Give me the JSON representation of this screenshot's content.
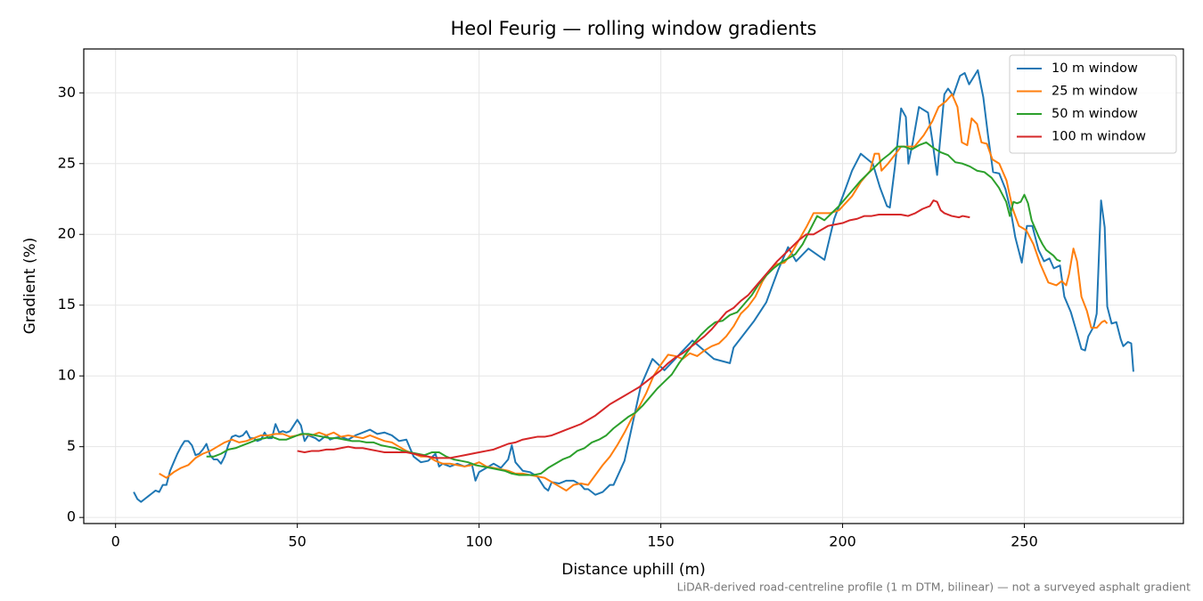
{
  "chart_data": {
    "type": "line",
    "title": "Heol Feurig — rolling window gradients",
    "x_label": "Distance uphill (m)",
    "y_label": "Gradient (%)",
    "footnote": "LiDAR-derived road-centreline profile (1 m DTM, bilinear) — not a surveyed asphalt gradient",
    "xlim": [
      -8.75,
      293.75
    ],
    "ylim": [
      -0.43,
      33.1
    ],
    "xticks": [
      0,
      50,
      100,
      150,
      200,
      250
    ],
    "yticks": [
      0,
      5,
      10,
      15,
      20,
      25,
      30
    ],
    "grid": true,
    "legend": "upper right",
    "series": [
      {
        "name": "10 m window",
        "color": "#1f77b4",
        "x": [
          5,
          6,
          7,
          8,
          9,
          10,
          11,
          12,
          13,
          14,
          15,
          16,
          17,
          18,
          19,
          20,
          21,
          22,
          23,
          24,
          25,
          26,
          27,
          28,
          29,
          30,
          31,
          32,
          33,
          34,
          35,
          36,
          37,
          38,
          39,
          40,
          41,
          42,
          43,
          44,
          45,
          46,
          47,
          48,
          49,
          50,
          51,
          52,
          53,
          54,
          55,
          56,
          57,
          58,
          59,
          60,
          62,
          64,
          66,
          68,
          70,
          72,
          74,
          76,
          78,
          80,
          82,
          84,
          86,
          88,
          89,
          90,
          92,
          94,
          96,
          98,
          99,
          100,
          102,
          104,
          106,
          108,
          109,
          110,
          112,
          114,
          116,
          118,
          119,
          120,
          122,
          124,
          126,
          128,
          129,
          130,
          132,
          134,
          136,
          137,
          140,
          144.5,
          147.7,
          151,
          158.7,
          164.6,
          169,
          170,
          175.7,
          179,
          182.3,
          185,
          187.2,
          190.6,
          195,
          197.7,
          200.2,
          202.6,
          205,
          208.3,
          210.3,
          212.2,
          213,
          214.4,
          216.1,
          217.4,
          218.1,
          219.3,
          221,
          223.5,
          224.7,
          226,
          226.7,
          228,
          229,
          230.4,
          232.3,
          233.6,
          234.8,
          237.2,
          238.7,
          240,
          241.4,
          243.1,
          244.8,
          246.3,
          247.5,
          249.3,
          250.7,
          252.2,
          253.9,
          255.4,
          256.9,
          258.1,
          259.8,
          261,
          262.8,
          264.5,
          265.7,
          266.7,
          267.6,
          269.1,
          269.9,
          271.1,
          272.1,
          272.8,
          274,
          275.3,
          276.5,
          277.2,
          278.5,
          279.4,
          280
        ],
        "values": [
          1.8,
          1.3,
          1.1,
          1.3,
          1.5,
          1.7,
          1.9,
          1.8,
          2.3,
          2.3,
          3.3,
          3.9,
          4.5,
          5.0,
          5.4,
          5.4,
          5.1,
          4.4,
          4.5,
          4.8,
          5.2,
          4.4,
          4.1,
          4.1,
          3.8,
          4.3,
          5.1,
          5.7,
          5.8,
          5.7,
          5.8,
          6.1,
          5.6,
          5.6,
          5.4,
          5.5,
          6.0,
          5.6,
          5.6,
          6.6,
          6.0,
          6.1,
          6.0,
          6.1,
          6.5,
          6.9,
          6.5,
          5.4,
          5.8,
          5.7,
          5.6,
          5.4,
          5.6,
          5.8,
          5.5,
          5.6,
          5.7,
          5.5,
          5.8,
          6.0,
          6.2,
          5.9,
          6.0,
          5.8,
          5.4,
          5.5,
          4.3,
          3.9,
          4.0,
          4.5,
          3.6,
          3.8,
          3.6,
          3.8,
          3.6,
          3.8,
          2.6,
          3.2,
          3.5,
          3.8,
          3.5,
          4.1,
          5.1,
          3.9,
          3.3,
          3.2,
          2.9,
          2.1,
          1.9,
          2.5,
          2.4,
          2.6,
          2.6,
          2.3,
          2.0,
          2.0,
          1.6,
          1.8,
          2.3,
          2.3,
          4.0,
          9.3,
          11.2,
          10.4,
          12.5,
          11.2,
          10.9,
          12.0,
          13.9,
          15.2,
          17.5,
          19.1,
          18.1,
          19.0,
          18.2,
          21.1,
          22.8,
          24.5,
          25.7,
          25.0,
          23.3,
          22.0,
          21.9,
          24.8,
          28.9,
          28.3,
          25.0,
          26.5,
          29.0,
          28.6,
          26.6,
          24.2,
          26.3,
          29.9,
          30.3,
          29.8,
          31.2,
          31.4,
          30.6,
          31.6,
          29.7,
          27.0,
          24.4,
          24.3,
          23.2,
          21.6,
          19.8,
          18.0,
          20.6,
          20.6,
          18.9,
          18.1,
          18.3,
          17.6,
          17.8,
          15.6,
          14.5,
          13.0,
          11.9,
          11.8,
          12.8,
          13.5,
          14.4,
          22.4,
          20.5,
          14.9,
          13.7,
          13.8,
          12.6,
          12.1,
          12.4,
          12.3,
          10.3
        ]
      },
      {
        "name": "25 m window",
        "color": "#ff7f0e",
        "x": [
          12,
          14,
          16,
          18,
          20,
          22,
          24,
          26,
          28,
          30,
          32,
          34,
          36,
          38,
          40,
          42,
          44,
          46,
          48,
          50,
          52,
          54,
          56,
          58,
          60,
          62,
          64,
          66,
          68,
          70,
          72,
          74,
          76,
          78,
          80,
          82,
          84,
          86,
          88,
          90,
          92,
          94,
          96,
          98,
          100,
          102,
          104,
          106,
          108,
          110,
          112,
          114,
          116,
          118,
          120,
          122,
          124,
          126,
          128,
          130,
          132,
          134,
          136,
          138,
          140,
          142,
          144,
          146,
          148,
          150,
          152,
          154,
          156,
          158,
          160,
          162,
          164,
          166,
          168,
          170,
          172,
          174,
          176,
          178,
          180,
          182,
          184,
          186,
          188,
          190,
          192,
          194,
          196.5,
          199,
          202.6,
          205,
          207.6,
          208.8,
          210,
          210.7,
          212.5,
          216.1,
          219.8,
          222.3,
          224.7,
          226.4,
          228.4,
          230.1,
          231.6,
          232.8,
          234.3,
          235.5,
          237,
          238.2,
          239.7,
          241.2,
          243.1,
          245.1,
          246.8,
          248.5,
          250.5,
          252.5,
          254.4,
          256.6,
          258.8,
          260.3,
          261.5,
          262.3,
          263.5,
          264.5,
          265.7,
          267.2,
          268.4,
          269.9,
          271.3,
          272.1,
          272.8
        ],
        "values": [
          3.1,
          2.8,
          3.2,
          3.5,
          3.7,
          4.2,
          4.5,
          4.7,
          5.0,
          5.3,
          5.5,
          5.3,
          5.4,
          5.6,
          5.8,
          5.8,
          5.9,
          5.9,
          5.7,
          5.8,
          5.9,
          5.8,
          6.0,
          5.8,
          6.0,
          5.7,
          5.8,
          5.7,
          5.6,
          5.8,
          5.6,
          5.4,
          5.3,
          5.0,
          4.7,
          4.5,
          4.3,
          4.3,
          4.0,
          3.8,
          3.8,
          3.7,
          3.6,
          3.7,
          3.9,
          3.6,
          3.5,
          3.4,
          3.3,
          3.1,
          3.1,
          3.0,
          2.9,
          2.8,
          2.5,
          2.2,
          1.9,
          2.3,
          2.4,
          2.3,
          3.0,
          3.7,
          4.3,
          5.1,
          6.0,
          7.0,
          7.8,
          8.8,
          10.0,
          10.8,
          11.5,
          11.4,
          11.2,
          11.6,
          11.4,
          11.8,
          12.1,
          12.3,
          12.8,
          13.5,
          14.4,
          14.9,
          15.6,
          16.7,
          17.5,
          17.9,
          18.0,
          18.7,
          19.6,
          20.5,
          21.5,
          21.5,
          21.5,
          21.7,
          22.7,
          23.7,
          24.5,
          25.7,
          25.7,
          24.5,
          25.0,
          26.2,
          26.2,
          27.0,
          28.0,
          29.0,
          29.4,
          29.9,
          29.0,
          26.5,
          26.3,
          28.2,
          27.8,
          26.5,
          26.4,
          25.3,
          25.0,
          23.8,
          21.8,
          20.6,
          20.3,
          19.3,
          17.9,
          16.6,
          16.4,
          16.7,
          16.4,
          17.2,
          19.0,
          18.1,
          15.6,
          14.6,
          13.4,
          13.4,
          13.8,
          13.9,
          13.7
        ]
      },
      {
        "name": "50 m window",
        "color": "#2ca02c",
        "x": [
          25,
          27,
          29,
          31,
          33,
          35,
          37,
          39,
          41,
          43,
          45,
          47,
          49,
          51,
          53,
          55,
          57,
          59,
          61,
          63,
          65,
          67,
          69,
          71,
          73,
          75,
          77,
          79,
          81,
          83,
          85,
          87,
          89,
          91,
          93,
          95,
          97,
          99,
          101,
          103,
          105,
          107,
          109,
          111,
          113,
          115,
          117,
          119,
          121,
          123,
          125,
          127,
          129,
          131,
          133,
          135,
          137,
          139,
          141,
          143,
          145,
          147,
          149,
          151,
          153,
          155,
          157,
          159,
          161,
          163,
          165,
          167,
          169,
          171,
          173,
          175,
          177,
          179,
          181,
          183,
          185,
          187,
          189,
          191,
          193,
          195,
          197,
          199,
          201,
          203,
          205,
          207,
          209,
          211,
          213,
          215,
          217,
          219,
          221,
          223,
          225,
          227,
          229,
          231,
          233,
          235,
          237,
          239,
          241,
          243,
          245,
          246,
          247,
          248,
          249,
          250,
          251,
          252,
          253,
          254,
          255,
          256,
          257,
          258,
          259,
          260
        ],
        "values": [
          4.3,
          4.3,
          4.5,
          4.8,
          4.9,
          5.1,
          5.3,
          5.5,
          5.6,
          5.7,
          5.5,
          5.5,
          5.7,
          5.9,
          5.9,
          5.8,
          5.7,
          5.6,
          5.6,
          5.5,
          5.4,
          5.4,
          5.3,
          5.3,
          5.1,
          5.0,
          4.9,
          4.7,
          4.6,
          4.5,
          4.4,
          4.6,
          4.6,
          4.3,
          4.1,
          4.0,
          3.9,
          3.7,
          3.6,
          3.5,
          3.4,
          3.3,
          3.1,
          3.0,
          3.0,
          3.0,
          3.1,
          3.5,
          3.8,
          4.1,
          4.3,
          4.7,
          4.9,
          5.3,
          5.5,
          5.8,
          6.3,
          6.7,
          7.1,
          7.4,
          7.9,
          8.5,
          9.1,
          9.6,
          10.1,
          10.9,
          11.6,
          12.3,
          12.9,
          13.4,
          13.8,
          13.9,
          14.3,
          14.5,
          15.1,
          15.7,
          16.5,
          17.1,
          17.6,
          18.0,
          18.3,
          18.6,
          19.3,
          20.3,
          21.3,
          21.0,
          21.5,
          22.0,
          22.6,
          23.2,
          23.8,
          24.3,
          24.8,
          25.3,
          25.7,
          26.2,
          26.2,
          26.0,
          26.3,
          26.5,
          26.1,
          25.8,
          25.6,
          25.1,
          25.0,
          24.8,
          24.5,
          24.4,
          24.0,
          23.3,
          22.3,
          21.3,
          22.3,
          22.2,
          22.3,
          22.8,
          22.2,
          21.0,
          20.4,
          19.8,
          19.3,
          18.9,
          18.7,
          18.5,
          18.2,
          18.1
        ]
      },
      {
        "name": "100 m window",
        "color": "#d62728",
        "x": [
          50,
          52,
          54,
          56,
          58,
          60,
          62,
          64,
          66,
          68,
          70,
          72,
          74,
          76,
          78,
          80,
          82,
          84,
          86,
          88,
          90,
          92,
          94,
          96,
          98,
          100,
          102,
          104,
          106,
          108,
          110,
          112,
          114,
          116,
          118,
          120,
          122,
          124,
          126,
          128,
          130,
          132,
          134,
          136,
          138,
          140,
          142,
          144,
          146,
          148,
          150,
          152,
          154,
          156,
          158,
          160,
          162,
          164,
          166,
          168,
          170,
          172,
          174,
          176,
          178,
          180,
          182,
          184,
          186,
          188,
          190,
          192,
          194,
          196,
          198,
          200,
          202,
          204,
          206,
          208,
          210,
          212,
          214,
          216,
          218,
          220,
          222,
          224,
          225,
          226,
          227,
          228,
          230,
          232,
          233,
          235
        ],
        "values": [
          4.7,
          4.6,
          4.7,
          4.7,
          4.8,
          4.8,
          4.9,
          5.0,
          4.9,
          4.9,
          4.8,
          4.7,
          4.6,
          4.6,
          4.6,
          4.6,
          4.5,
          4.4,
          4.3,
          4.2,
          4.2,
          4.2,
          4.3,
          4.4,
          4.5,
          4.6,
          4.7,
          4.8,
          5.0,
          5.2,
          5.3,
          5.5,
          5.6,
          5.7,
          5.7,
          5.8,
          6.0,
          6.2,
          6.4,
          6.6,
          6.9,
          7.2,
          7.6,
          8.0,
          8.3,
          8.6,
          8.9,
          9.2,
          9.6,
          10.0,
          10.4,
          10.9,
          11.3,
          11.6,
          12.0,
          12.4,
          12.8,
          13.3,
          13.9,
          14.5,
          14.8,
          15.3,
          15.7,
          16.3,
          16.9,
          17.5,
          18.1,
          18.6,
          19.1,
          19.6,
          20.0,
          20.0,
          20.3,
          20.6,
          20.7,
          20.8,
          21.0,
          21.1,
          21.3,
          21.3,
          21.4,
          21.4,
          21.4,
          21.4,
          21.3,
          21.5,
          21.8,
          22.0,
          22.4,
          22.3,
          21.7,
          21.5,
          21.3,
          21.2,
          21.3,
          21.2
        ]
      }
    ]
  }
}
